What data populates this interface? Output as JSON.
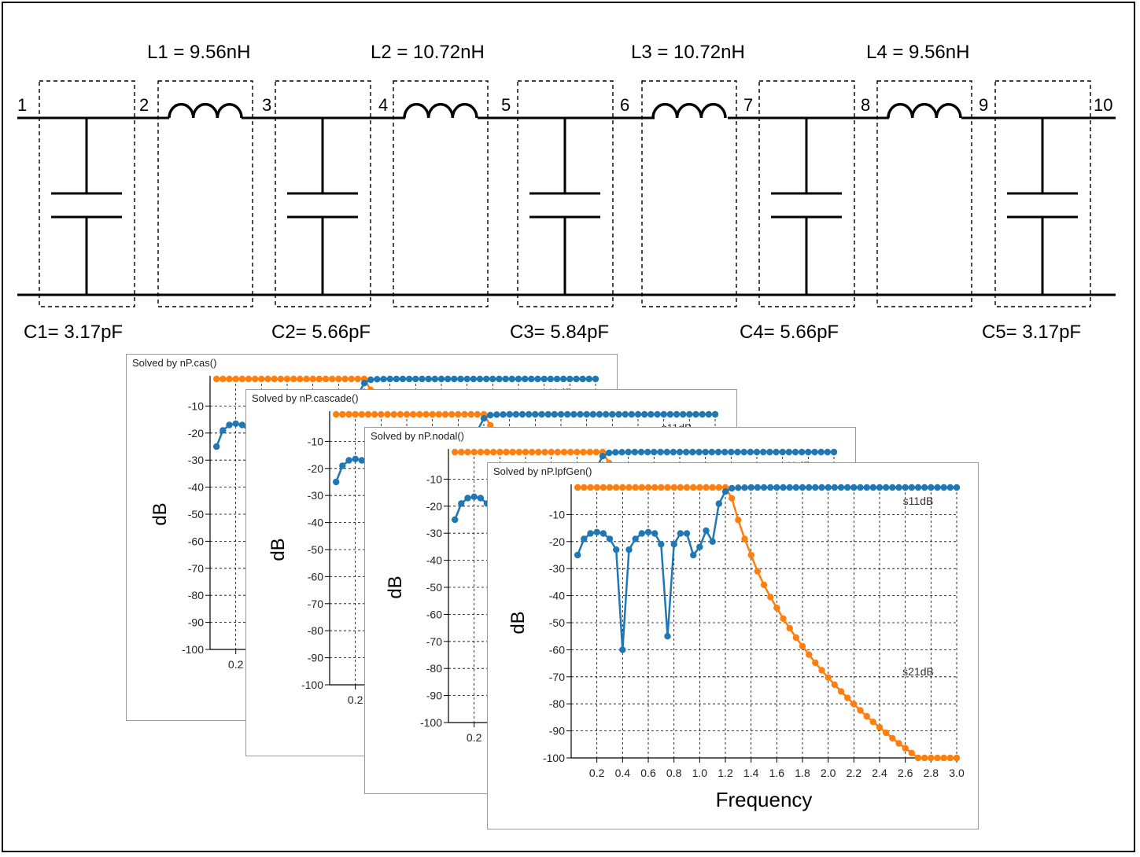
{
  "circuit": {
    "nodes": [
      "1",
      "2",
      "3",
      "4",
      "5",
      "6",
      "7",
      "8",
      "9",
      "10"
    ],
    "inductors": [
      {
        "label": "L1 = 9.56nH"
      },
      {
        "label": "L2 = 10.72nH"
      },
      {
        "label": "L3 = 10.72nH"
      },
      {
        "label": "L4 = 9.56nH"
      }
    ],
    "capacitors": [
      {
        "label": "C1= 3.17pF"
      },
      {
        "label": "C2= 5.66pF"
      },
      {
        "label": "C3= 5.84pF"
      },
      {
        "label": "C4= 5.66pF"
      },
      {
        "label": "C5= 3.17pF"
      }
    ]
  },
  "panels": [
    {
      "title": "Solved by nP.cas()"
    },
    {
      "title": "Solved by nP.cascade()"
    },
    {
      "title": "Solved by nP.nodal()"
    },
    {
      "title": "Solved by nP.lpfGen()"
    }
  ],
  "chart_data": {
    "type": "line",
    "xlabel": "Frequency",
    "ylabel": "dB",
    "xlim": [
      0,
      3.0
    ],
    "ylim": [
      -100,
      0
    ],
    "xticks": [
      "0.2",
      "0.4",
      "0.6",
      "0.8",
      "1.0",
      "1.2",
      "1.4",
      "1.6",
      "1.8",
      "2.0",
      "2.2",
      "2.4",
      "2.6",
      "2.8",
      "3.0"
    ],
    "yticks": [
      "-10",
      "-20",
      "-30",
      "-40",
      "-50",
      "-60",
      "-70",
      "-80",
      "-90",
      "-100"
    ],
    "grid": true,
    "colors": {
      "s11dB": "#1f77b4",
      "s21dB": "#ff7f0e"
    },
    "series": [
      {
        "name": "s11dB",
        "x": [
          0.05,
          0.1,
          0.15,
          0.2,
          0.25,
          0.3,
          0.35,
          0.4,
          0.45,
          0.5,
          0.55,
          0.6,
          0.65,
          0.7,
          0.75,
          0.8,
          0.85,
          0.9,
          0.95,
          1.0,
          1.05,
          1.1,
          1.15,
          1.2,
          1.25,
          1.3,
          1.35,
          1.4,
          1.45,
          1.5,
          1.55,
          1.6,
          1.65,
          1.7,
          1.75,
          1.8,
          1.85,
          1.9,
          1.95,
          2.0,
          2.05,
          2.1,
          2.15,
          2.2,
          2.25,
          2.3,
          2.35,
          2.4,
          2.45,
          2.5,
          2.55,
          2.6,
          2.65,
          2.7,
          2.75,
          2.8,
          2.85,
          2.9,
          2.95,
          3.0
        ],
        "values": [
          -25,
          -19,
          -17,
          -16.5,
          -17,
          -19,
          -23,
          -60,
          -23,
          -19,
          -17,
          -16.5,
          -17,
          -21,
          -55,
          -21,
          -17,
          -17,
          -25,
          -22,
          -16,
          -20,
          -6,
          -1.5,
          -0.3,
          -0.1,
          -0.05,
          0,
          0,
          0,
          0,
          0,
          0,
          0,
          0,
          0,
          0,
          0,
          0,
          0,
          0,
          0,
          0,
          0,
          0,
          0,
          0,
          0,
          0,
          0,
          0,
          0,
          0,
          0,
          0,
          0,
          0,
          0,
          0,
          0
        ]
      },
      {
        "name": "s21dB",
        "x": [
          0.05,
          0.1,
          0.15,
          0.2,
          0.25,
          0.3,
          0.35,
          0.4,
          0.45,
          0.5,
          0.55,
          0.6,
          0.65,
          0.7,
          0.75,
          0.8,
          0.85,
          0.9,
          0.95,
          1.0,
          1.05,
          1.1,
          1.15,
          1.2,
          1.25,
          1.3,
          1.35,
          1.4,
          1.45,
          1.5,
          1.55,
          1.6,
          1.65,
          1.7,
          1.75,
          1.8,
          1.85,
          1.9,
          1.95,
          2.0,
          2.05,
          2.1,
          2.15,
          2.2,
          2.25,
          2.3,
          2.35,
          2.4,
          2.45,
          2.5,
          2.55,
          2.6,
          2.65,
          2.7,
          2.75,
          2.8,
          2.85,
          2.9,
          2.95,
          3.0
        ],
        "values": [
          0,
          0,
          0,
          0,
          0,
          0,
          0,
          0,
          0,
          0,
          0,
          0,
          0,
          0,
          0,
          0,
          0,
          0,
          0,
          0,
          0,
          0,
          0,
          0,
          -4,
          -12,
          -19,
          -25,
          -31,
          -36,
          -40.5,
          -44.5,
          -48.5,
          -52,
          -55.5,
          -58.7,
          -61.8,
          -64.8,
          -67.6,
          -70.3,
          -72.9,
          -75.4,
          -77.8,
          -80.1,
          -82.4,
          -84.6,
          -86.7,
          -88.7,
          -90.7,
          -92.7,
          -94.6,
          -96.4,
          -98.2,
          -100,
          -100,
          -100,
          -100,
          -100,
          -100,
          -100
        ]
      }
    ]
  }
}
